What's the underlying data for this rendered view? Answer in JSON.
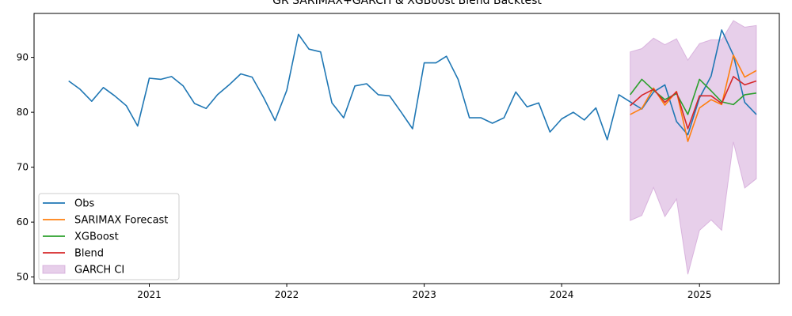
{
  "chart_data": {
    "type": "line",
    "title": "GR SARIMAX+GARCH & XGBoost Blend Backtest",
    "xlabel": "",
    "ylabel": "",
    "xlim": [
      "2020-03-01",
      "2025-08-01"
    ],
    "ylim": [
      48.8,
      98.0
    ],
    "x_ticks": [
      "2021",
      "2022",
      "2023",
      "2024",
      "2025"
    ],
    "y_ticks": [
      50,
      60,
      70,
      80,
      90
    ],
    "grid": false,
    "legend_position": "lower-left",
    "series": [
      {
        "name": "Obs",
        "color": "#1f77b4",
        "x": [
          "2020-06-01",
          "2020-07-01",
          "2020-08-01",
          "2020-09-01",
          "2020-10-01",
          "2020-11-01",
          "2020-12-01",
          "2021-01-01",
          "2021-02-01",
          "2021-03-01",
          "2021-04-01",
          "2021-05-01",
          "2021-06-01",
          "2021-07-01",
          "2021-08-01",
          "2021-09-01",
          "2021-10-01",
          "2021-11-01",
          "2021-12-01",
          "2022-01-01",
          "2022-02-01",
          "2022-03-01",
          "2022-04-01",
          "2022-05-01",
          "2022-06-01",
          "2022-07-01",
          "2022-08-01",
          "2022-09-01",
          "2022-10-01",
          "2022-11-01",
          "2022-12-01",
          "2023-01-01",
          "2023-02-01",
          "2023-03-01",
          "2023-04-01",
          "2023-05-01",
          "2023-06-01",
          "2023-07-01",
          "2023-08-01",
          "2023-09-01",
          "2023-10-01",
          "2023-11-01",
          "2023-12-01",
          "2024-01-01",
          "2024-02-01",
          "2024-03-01",
          "2024-04-01",
          "2024-05-01",
          "2024-06-01",
          "2024-07-01",
          "2024-08-01",
          "2024-09-01",
          "2024-10-01",
          "2024-11-01",
          "2024-12-01",
          "2025-01-01",
          "2025-02-01",
          "2025-03-01",
          "2025-04-01",
          "2025-05-01",
          "2025-06-01"
        ],
        "values": [
          85.7,
          84.2,
          82.0,
          84.5,
          83.0,
          81.2,
          77.5,
          86.2,
          86.0,
          86.5,
          84.8,
          81.6,
          80.7,
          83.2,
          85.0,
          87.0,
          86.4,
          82.6,
          78.5,
          84.0,
          94.2,
          91.5,
          91.0,
          81.7,
          79.0,
          84.8,
          85.2,
          83.2,
          83.0,
          80.0,
          77.0,
          89.0,
          89.0,
          90.2,
          86.0,
          79.0,
          79.0,
          78.0,
          79.0,
          83.7,
          81.0,
          81.7,
          76.4,
          78.8,
          80.0,
          78.6,
          80.8,
          75.0,
          83.2,
          81.9,
          80.6,
          83.7,
          85.0,
          78.3,
          75.9,
          82.6,
          86.6,
          95.0,
          90.4,
          81.8,
          79.6
        ]
      },
      {
        "name": "SARIMAX Forecast",
        "color": "#ff7f0e",
        "x": [
          "2024-07-01",
          "2024-08-01",
          "2024-09-01",
          "2024-10-01",
          "2024-11-01",
          "2024-12-01",
          "2025-01-01",
          "2025-02-01",
          "2025-03-01",
          "2025-04-01",
          "2025-05-01",
          "2025-06-01"
        ],
        "values": [
          79.6,
          80.7,
          84.4,
          81.3,
          83.8,
          74.7,
          80.8,
          82.3,
          81.4,
          90.4,
          86.4,
          87.6
        ]
      },
      {
        "name": "XGBoost",
        "color": "#2ca02c",
        "x": [
          "2024-07-01",
          "2024-08-01",
          "2024-09-01",
          "2024-10-01",
          "2024-11-01",
          "2024-12-01",
          "2025-01-01",
          "2025-02-01",
          "2025-03-01",
          "2025-04-01",
          "2025-05-01",
          "2025-06-01"
        ],
        "values": [
          83.2,
          86.0,
          84.0,
          82.3,
          83.4,
          79.6,
          86.0,
          83.9,
          81.9,
          81.4,
          83.2,
          83.5
        ]
      },
      {
        "name": "Blend",
        "color": "#d62728",
        "x": [
          "2024-07-01",
          "2024-08-01",
          "2024-09-01",
          "2024-10-01",
          "2024-11-01",
          "2024-12-01",
          "2025-01-01",
          "2025-02-01",
          "2025-03-01",
          "2025-04-01",
          "2025-05-01",
          "2025-06-01"
        ],
        "values": [
          81.2,
          83.1,
          84.2,
          81.8,
          83.7,
          77.0,
          83.0,
          83.0,
          81.6,
          86.5,
          85.0,
          85.7
        ]
      }
    ],
    "band": {
      "name": "GARCH CI",
      "color": "#c994d1",
      "opacity": 0.45,
      "x": [
        "2024-07-01",
        "2024-08-01",
        "2024-09-01",
        "2024-10-01",
        "2024-11-01",
        "2024-12-01",
        "2025-01-01",
        "2025-02-01",
        "2025-03-01",
        "2025-04-01",
        "2025-05-01",
        "2025-06-01"
      ],
      "lower": [
        60.3,
        61.2,
        66.3,
        61.0,
        64.2,
        50.5,
        58.5,
        60.4,
        58.5,
        74.6,
        66.2,
        67.9
      ],
      "upper": [
        91.0,
        91.6,
        93.5,
        92.3,
        93.4,
        89.5,
        92.5,
        93.2,
        93.2,
        96.7,
        95.5,
        95.8
      ]
    }
  }
}
